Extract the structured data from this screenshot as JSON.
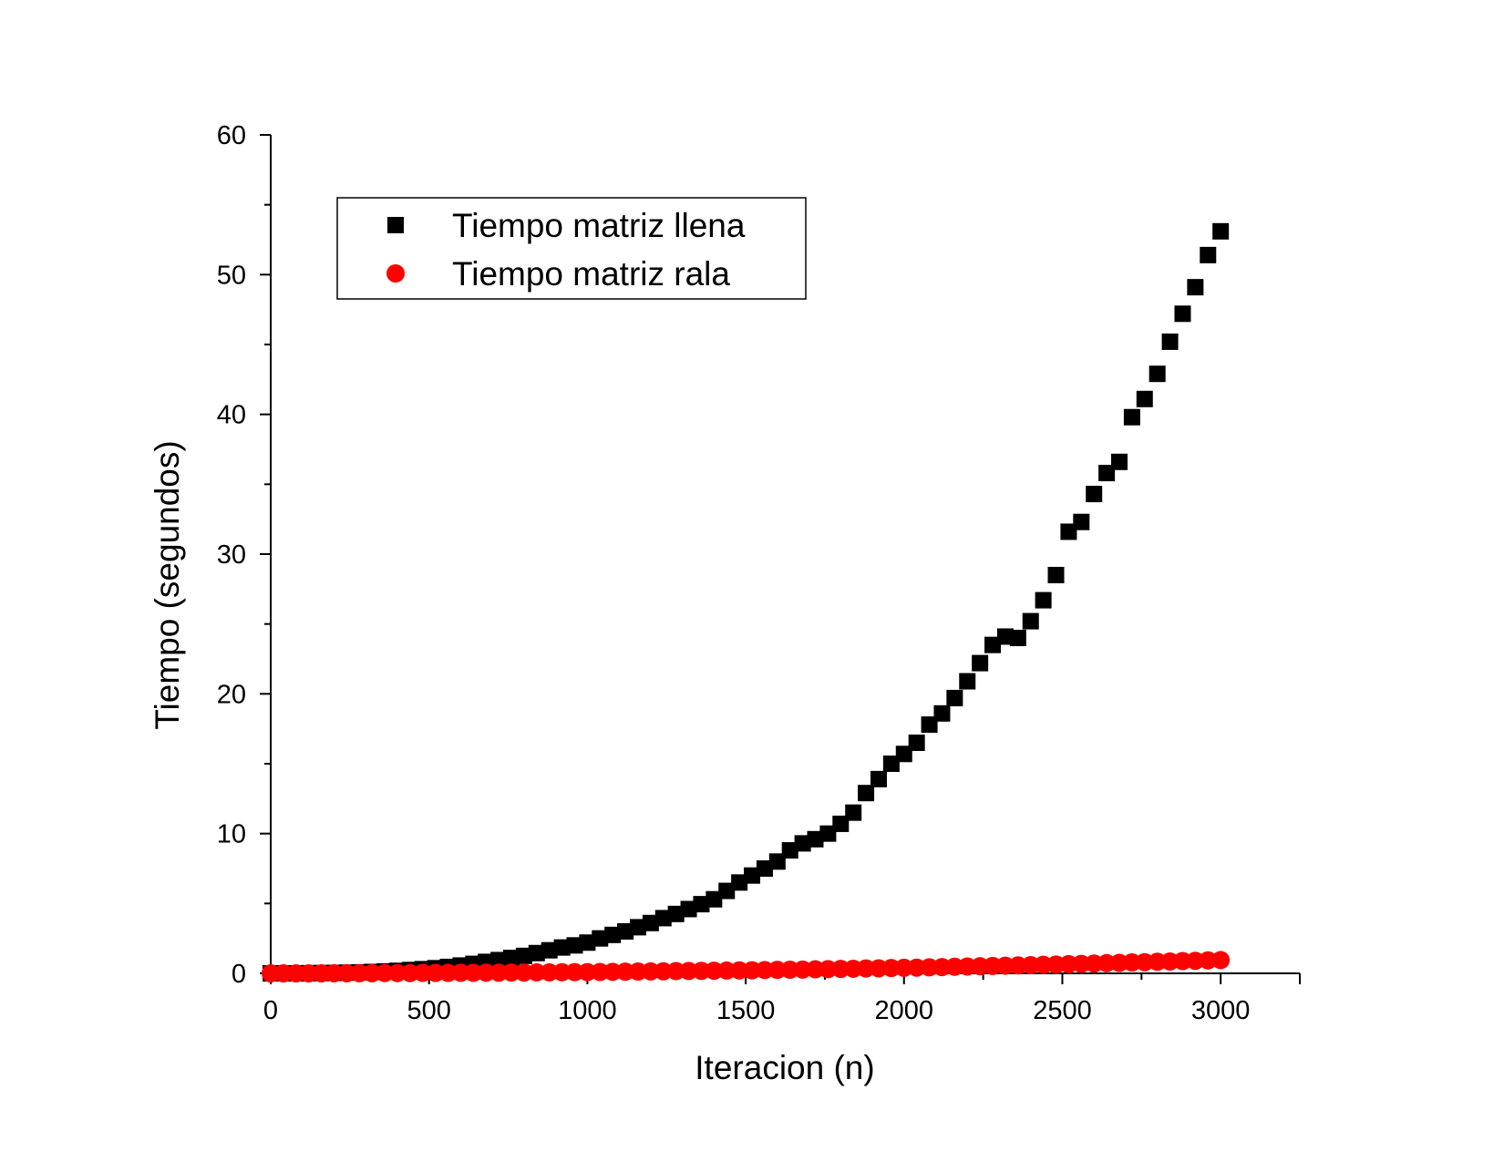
{
  "chart_data": {
    "type": "scatter",
    "title": "",
    "xlabel": "Iteracion (n)",
    "ylabel": "Tiempo (segundos)",
    "xlim": [
      0,
      3250
    ],
    "ylim": [
      0,
      60
    ],
    "xticks": [
      0,
      500,
      1000,
      1500,
      2000,
      2500,
      3000
    ],
    "yticks": [
      0,
      10,
      20,
      30,
      40,
      50,
      60
    ],
    "grid": false,
    "legend_position": "top-left",
    "series": [
      {
        "name": "Tiempo matriz llena",
        "marker": "square",
        "color": "#000000",
        "x": [
          0,
          40,
          80,
          120,
          160,
          200,
          240,
          280,
          320,
          360,
          400,
          440,
          480,
          520,
          560,
          600,
          640,
          680,
          720,
          760,
          800,
          840,
          880,
          920,
          960,
          1000,
          1040,
          1080,
          1120,
          1160,
          1200,
          1240,
          1280,
          1320,
          1360,
          1400,
          1440,
          1480,
          1520,
          1560,
          1600,
          1640,
          1680,
          1720,
          1760,
          1800,
          1840,
          1880,
          1920,
          1960,
          2000,
          2040,
          2080,
          2120,
          2160,
          2200,
          2240,
          2280,
          2320,
          2360,
          2400,
          2440,
          2480,
          2520,
          2560,
          2600,
          2640,
          2680,
          2720,
          2760,
          2800,
          2840,
          2880,
          2920,
          2960,
          3000
        ],
        "y": [
          0.0,
          0.0,
          0.0,
          0.01,
          0.02,
          0.03,
          0.05,
          0.07,
          0.1,
          0.14,
          0.18,
          0.24,
          0.3,
          0.37,
          0.46,
          0.56,
          0.68,
          0.82,
          0.95,
          1.1,
          1.25,
          1.45,
          1.65,
          1.85,
          2.0,
          2.2,
          2.5,
          2.75,
          3.0,
          3.3,
          3.6,
          3.95,
          4.25,
          4.6,
          4.95,
          5.3,
          5.9,
          6.5,
          7.0,
          7.5,
          8.0,
          8.8,
          9.3,
          9.6,
          10.0,
          10.7,
          11.5,
          12.9,
          13.9,
          15.0,
          15.7,
          16.5,
          17.8,
          18.6,
          19.7,
          20.9,
          22.2,
          23.5,
          24.1,
          24.0,
          25.2,
          26.7,
          28.5,
          31.6,
          32.3,
          34.3,
          35.8,
          36.6,
          39.8,
          41.1,
          42.9,
          45.2,
          47.2,
          49.1,
          51.4,
          53.1
        ]
      },
      {
        "name": "Tiempo matriz rala",
        "marker": "circle",
        "color": "#ff0000",
        "x": [
          0,
          40,
          80,
          120,
          160,
          200,
          240,
          280,
          320,
          360,
          400,
          440,
          480,
          520,
          560,
          600,
          640,
          680,
          720,
          760,
          800,
          840,
          880,
          920,
          960,
          1000,
          1040,
          1080,
          1120,
          1160,
          1200,
          1240,
          1280,
          1320,
          1360,
          1400,
          1440,
          1480,
          1520,
          1560,
          1600,
          1640,
          1680,
          1720,
          1760,
          1800,
          1840,
          1880,
          1920,
          1960,
          2000,
          2040,
          2080,
          2120,
          2160,
          2200,
          2240,
          2280,
          2320,
          2360,
          2400,
          2440,
          2480,
          2520,
          2560,
          2600,
          2640,
          2680,
          2720,
          2760,
          2800,
          2840,
          2880,
          2920,
          2960,
          3000
        ],
        "y": [
          0.0,
          0.0,
          0.0,
          0.0,
          0.0,
          0.01,
          0.01,
          0.01,
          0.01,
          0.02,
          0.02,
          0.02,
          0.03,
          0.03,
          0.03,
          0.04,
          0.04,
          0.05,
          0.05,
          0.06,
          0.06,
          0.07,
          0.07,
          0.08,
          0.09,
          0.09,
          0.1,
          0.11,
          0.12,
          0.13,
          0.14,
          0.15,
          0.16,
          0.17,
          0.18,
          0.19,
          0.2,
          0.21,
          0.22,
          0.24,
          0.25,
          0.26,
          0.27,
          0.29,
          0.3,
          0.32,
          0.33,
          0.35,
          0.36,
          0.38,
          0.4,
          0.41,
          0.43,
          0.45,
          0.47,
          0.49,
          0.51,
          0.53,
          0.55,
          0.57,
          0.59,
          0.61,
          0.63,
          0.66,
          0.68,
          0.7,
          0.73,
          0.75,
          0.78,
          0.8,
          0.83,
          0.85,
          0.88,
          0.9,
          0.93,
          0.95
        ]
      }
    ]
  }
}
